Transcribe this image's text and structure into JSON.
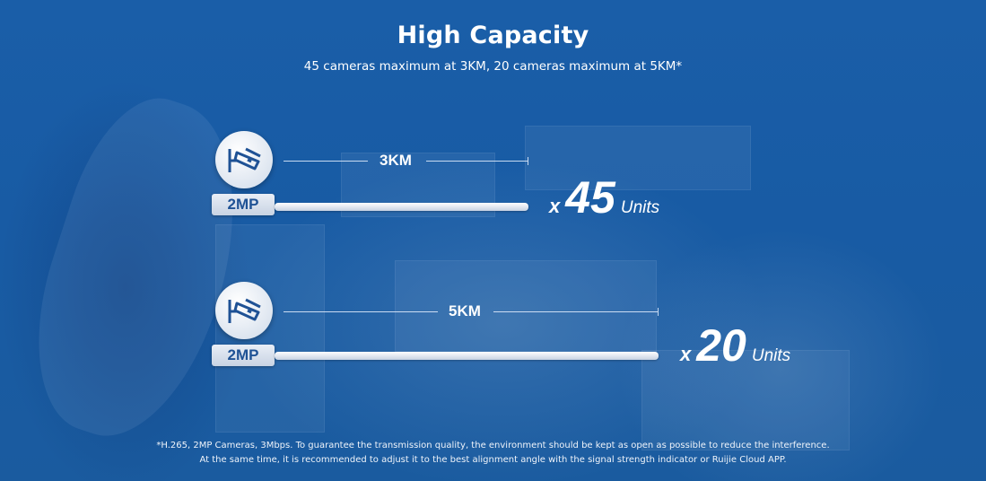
{
  "header": {
    "title": "High Capacity",
    "subtitle": "45 cameras maximum at 3KM, 20 cameras maximum at 5KM*"
  },
  "rows": [
    {
      "distance": "3KM",
      "camera_label": "2MP",
      "multiplier": "x",
      "count": "45",
      "unit": "Units"
    },
    {
      "distance": "5KM",
      "camera_label": "2MP",
      "multiplier": "x",
      "count": "20",
      "unit": "Units"
    }
  ],
  "footnote": {
    "line1": "*H.265, 2MP Cameras, 3Mbps. To guarantee the transmission quality, the environment should be kept as open as possible to reduce the interference.",
    "line2": "At the same time, it is recommended to adjust it to the best alignment angle with the signal strength indicator or Ruijie Cloud APP."
  },
  "icons": {
    "camera": "security-camera-icon"
  },
  "colors": {
    "background": "#1a5ea8",
    "badge_text": "#1f5295",
    "text": "#ffffff"
  }
}
